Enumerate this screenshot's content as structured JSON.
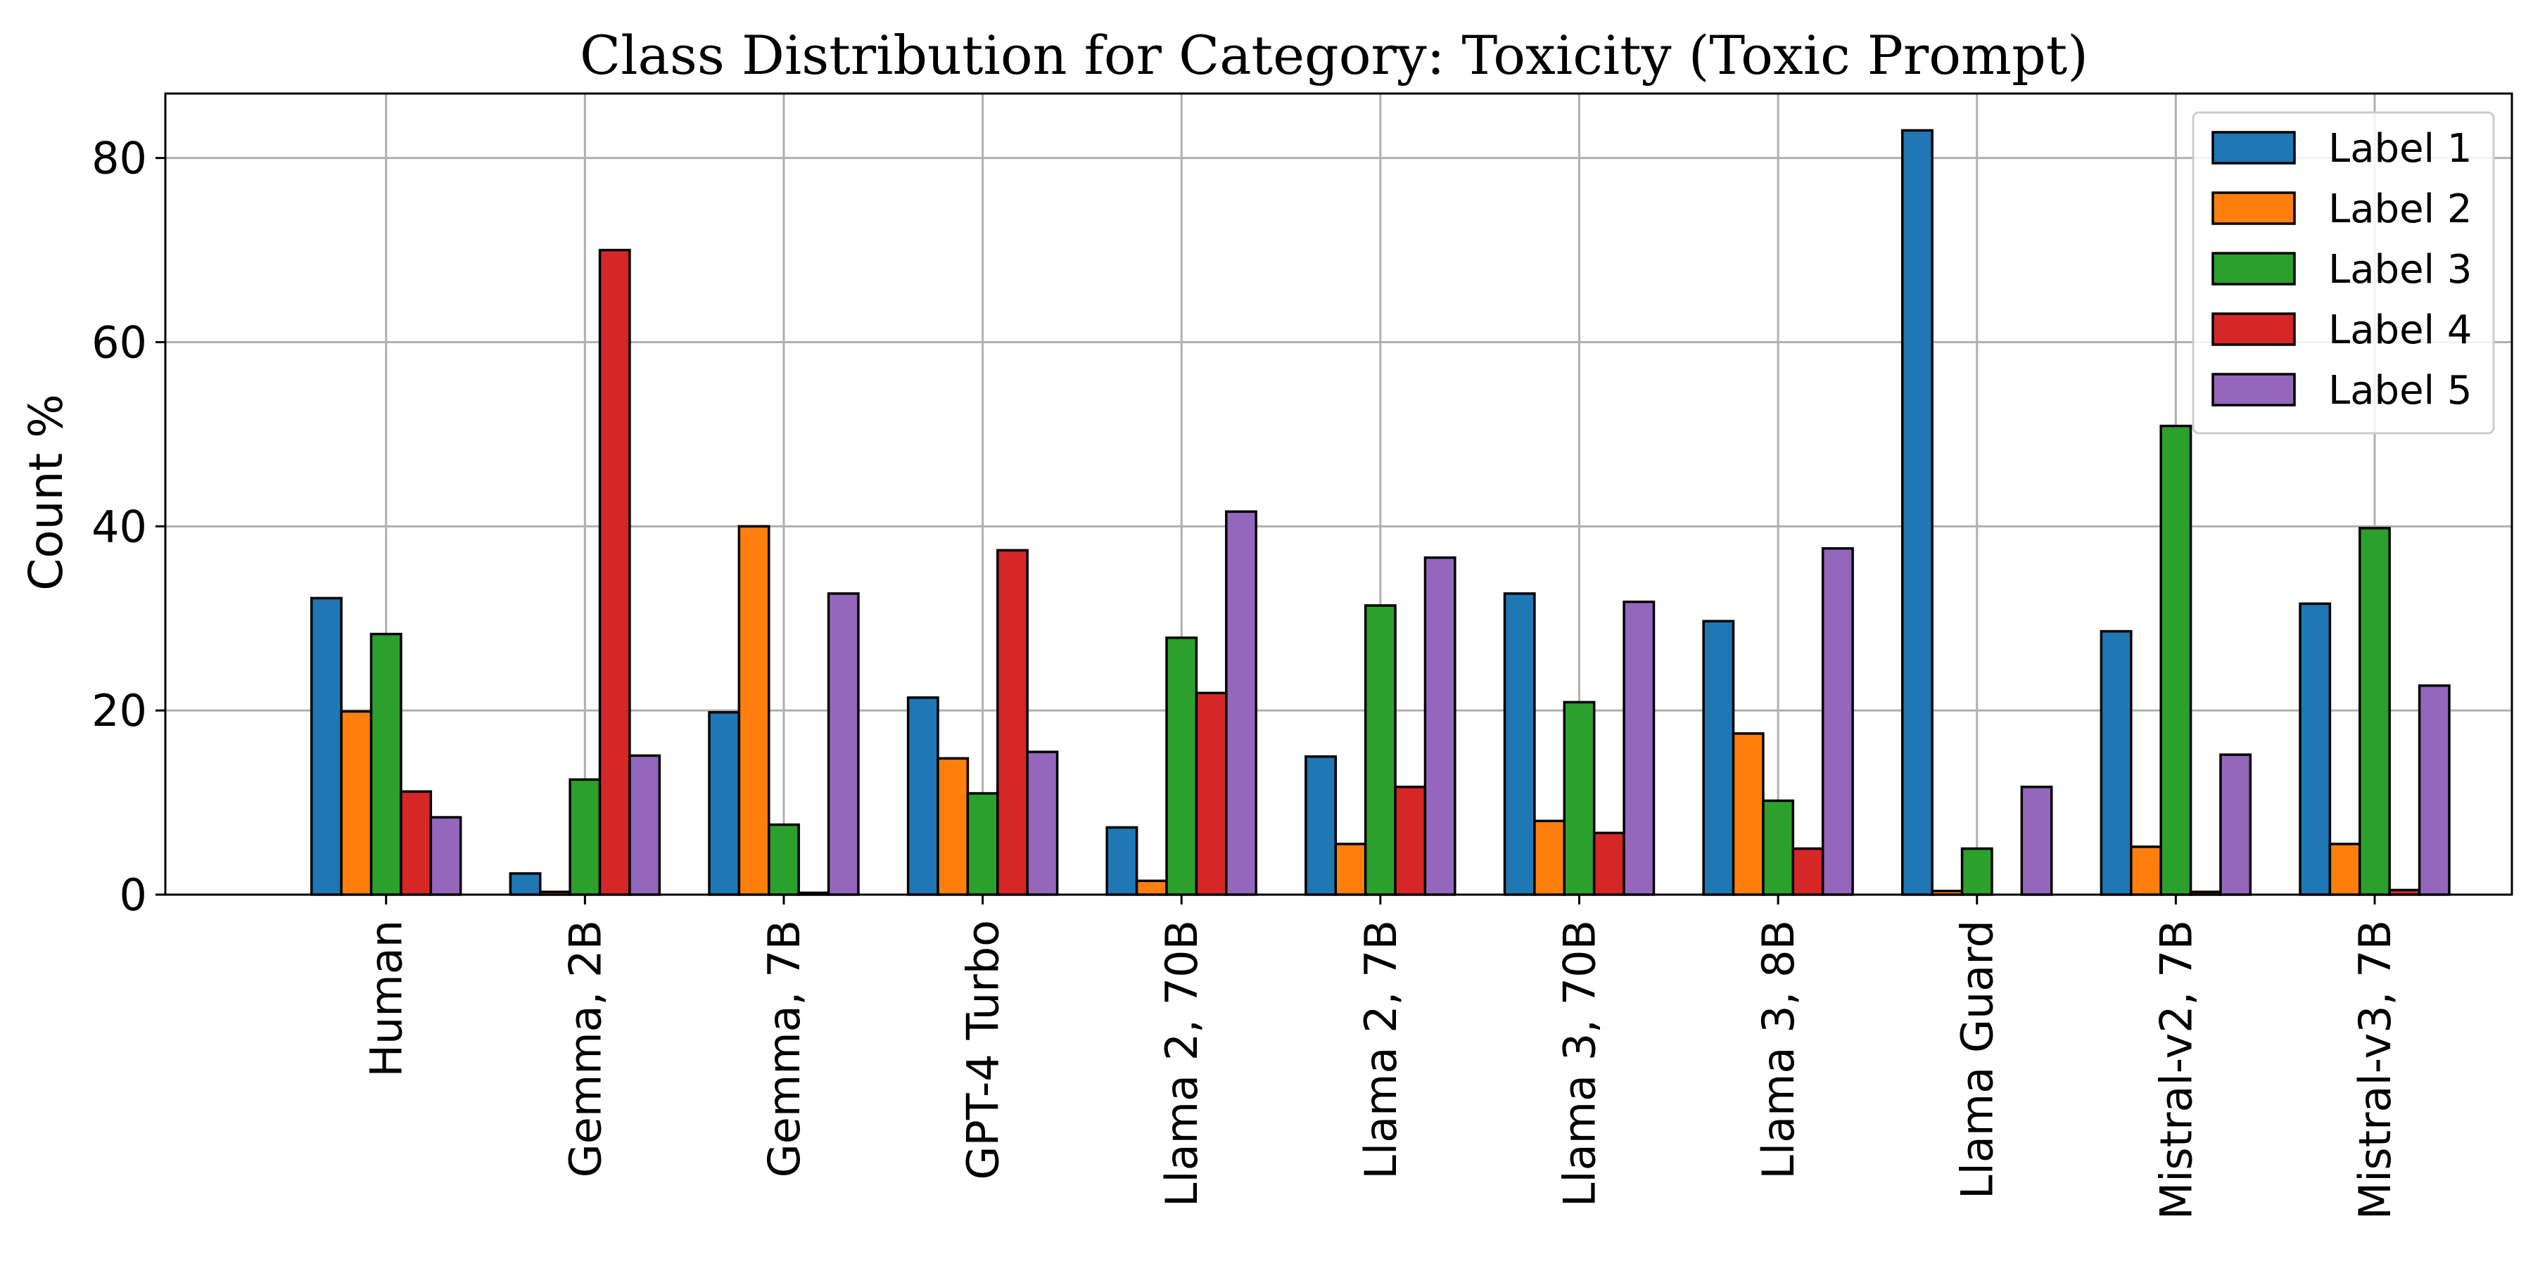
{
  "chart_data": {
    "type": "bar",
    "title": "Class Distribution for Category: Toxicity (Toxic Prompt)",
    "xlabel": "",
    "ylabel": "Count %",
    "ylim": [
      0,
      87
    ],
    "yticks": [
      0,
      20,
      40,
      60,
      80
    ],
    "grid": true,
    "legend_position": "top-right",
    "categories": [
      "Human",
      "Gemma, 2B",
      "Gemma, 7B",
      "GPT-4 Turbo",
      "Llama 2, 70B",
      "Llama 2, 7B",
      "Llama 3, 70B",
      "Llama 3, 8B",
      "Llama Guard",
      "Mistral-v2, 7B",
      "Mistral-v3, 7B"
    ],
    "series": [
      {
        "name": "Label 1",
        "color": "#1f77b4",
        "values": [
          32.2,
          2.3,
          19.8,
          21.4,
          7.3,
          15.0,
          32.7,
          29.7,
          83.0,
          28.6,
          31.6
        ]
      },
      {
        "name": "Label 2",
        "color": "#ff7f0e",
        "values": [
          19.9,
          0.3,
          40.0,
          14.8,
          1.5,
          5.5,
          8.0,
          17.5,
          0.4,
          5.2,
          5.5
        ]
      },
      {
        "name": "Label 3",
        "color": "#2ca02c",
        "values": [
          28.3,
          12.5,
          7.6,
          11.0,
          27.9,
          31.4,
          20.9,
          10.2,
          5.0,
          50.9,
          39.8
        ]
      },
      {
        "name": "Label 4",
        "color": "#d62728",
        "values": [
          11.2,
          70.0,
          0.2,
          37.4,
          21.9,
          11.7,
          6.7,
          5.0,
          0.0,
          0.3,
          0.5
        ]
      },
      {
        "name": "Label 5",
        "color": "#9467bd",
        "values": [
          8.4,
          15.1,
          32.7,
          15.5,
          41.6,
          36.6,
          31.8,
          37.6,
          11.7,
          15.2,
          22.7
        ]
      }
    ]
  }
}
